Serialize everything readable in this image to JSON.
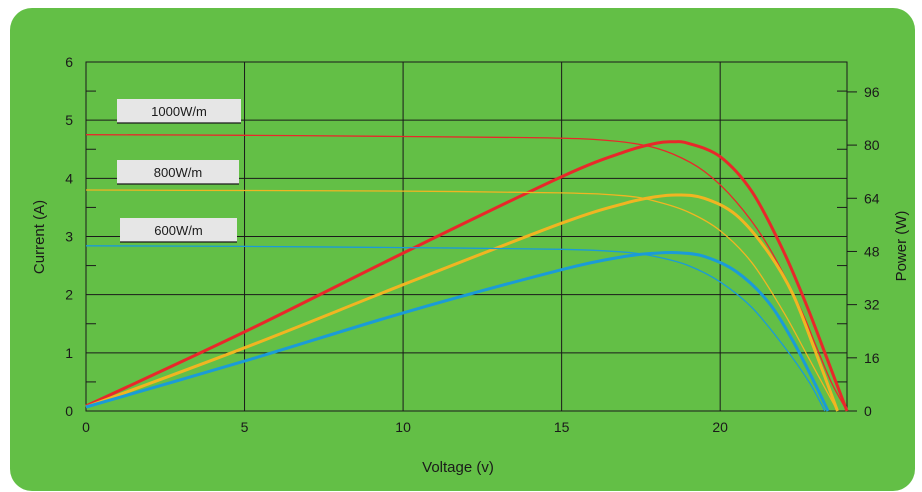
{
  "chart_data": {
    "type": "line",
    "xlabel": "Voltage (v)",
    "ylabel": "Current (A)",
    "y2label": "Power (W)",
    "xlim": [
      0,
      24
    ],
    "ylim": [
      0,
      6
    ],
    "y2lim": [
      0,
      105
    ],
    "xticks": [
      "0",
      "5",
      "10",
      "15",
      "20"
    ],
    "yticks": [
      "0",
      "1",
      "2",
      "3",
      "4",
      "5",
      "6"
    ],
    "y2ticks": [
      "0",
      "16",
      "32",
      "48",
      "64",
      "80",
      "96"
    ],
    "grid": true,
    "series": [
      {
        "name": "1000W/m",
        "color": "#e8282a",
        "current": {
          "x": [
            0,
            5,
            10,
            14,
            16,
            17.5,
            18.5,
            19.5,
            20.5,
            21.5,
            22.5,
            23,
            23.5,
            24
          ],
          "y": [
            4.75,
            4.74,
            4.72,
            4.7,
            4.67,
            4.58,
            4.42,
            4.12,
            3.6,
            2.85,
            1.8,
            1.15,
            0.5,
            0
          ]
        },
        "power": {
          "x": [
            0,
            5,
            10,
            15,
            17,
            18,
            18.5,
            19,
            20,
            21,
            22,
            22.8,
            23.4,
            24
          ],
          "y": [
            1.5,
            23.8,
            47.5,
            70.5,
            78,
            80.6,
            81,
            80.5,
            76.5,
            66,
            48,
            30,
            15,
            0
          ]
        }
      },
      {
        "name": "800W/m",
        "color": "#f0b522",
        "current": {
          "x": [
            0,
            5,
            10,
            15,
            17,
            18,
            19,
            20,
            21,
            22,
            22.8,
            23.4,
            23.7
          ],
          "y": [
            3.8,
            3.79,
            3.78,
            3.75,
            3.7,
            3.6,
            3.42,
            3.1,
            2.55,
            1.7,
            0.9,
            0.3,
            0
          ]
        },
        "power": {
          "x": [
            0,
            5,
            10,
            15,
            17,
            18,
            18.7,
            19.5,
            20.5,
            21.5,
            22.3,
            23,
            23.7
          ],
          "y": [
            1.2,
            19,
            38,
            56.5,
            62.5,
            64.5,
            65,
            64,
            59,
            48,
            35,
            18,
            0
          ]
        }
      },
      {
        "name": "600W/m",
        "color": "#1b9bd7",
        "current": {
          "x": [
            0,
            5,
            10,
            15,
            17,
            18,
            19,
            20,
            21,
            22,
            22.8,
            23.3
          ],
          "y": [
            2.84,
            2.83,
            2.81,
            2.78,
            2.73,
            2.65,
            2.5,
            2.22,
            1.78,
            1.12,
            0.5,
            0
          ]
        },
        "power": {
          "x": [
            0,
            5,
            10,
            15,
            17,
            18,
            18.7,
            19.5,
            20.5,
            21.5,
            22.3,
            23,
            23.4
          ],
          "y": [
            1.2,
            15,
            29.5,
            42.5,
            46.5,
            47.5,
            47.6,
            46.5,
            42,
            33,
            21,
            8,
            0
          ]
        }
      }
    ]
  }
}
